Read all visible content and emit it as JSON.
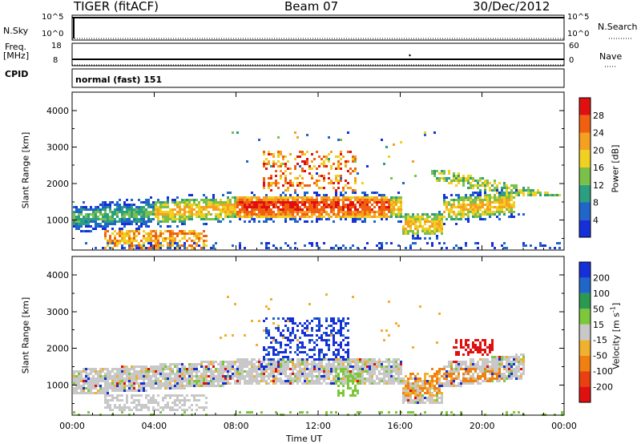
{
  "header": {
    "radar": "TIGER (fitACF)",
    "beam": "Beam 07",
    "date": "30/Dec/2012"
  },
  "panels": {
    "nsky": {
      "label": "N.Sky",
      "tick_top": "10^5",
      "tick_bottom": "10^0",
      "right_label": "N.Search",
      "right_tick_top": "10^5",
      "right_tick_bottom": "10^0"
    },
    "freq": {
      "label_line1": "Freq.",
      "label_line2": "[MHz]",
      "tick_top": "18",
      "tick_bottom": "8",
      "right_label": "Nave",
      "right_tick_top": "60",
      "right_tick_bottom": "0"
    },
    "cpid": {
      "label": "CPID",
      "value": "normal (fast) 151"
    }
  },
  "chart_data": [
    {
      "type": "heatmap",
      "name_key": "power",
      "ylabel": "Slant Range [km]",
      "xlabel": "",
      "ylim": [
        180,
        4500
      ],
      "yticks": [
        1000,
        2000,
        3000,
        4000
      ],
      "xticks": [
        "00:00",
        "04:00",
        "08:00",
        "12:00",
        "16:00",
        "20:00",
        "00:00"
      ],
      "xlim_hours": [
        0,
        24
      ],
      "colorbar": {
        "label": "Power [dB]",
        "ticks": [
          "4",
          "8",
          "12",
          "16",
          "20",
          "24",
          "28"
        ],
        "colors": [
          "#1530d8",
          "#1f66c8",
          "#2aa080",
          "#7cc04a",
          "#f0d020",
          "#f5a020",
          "#f06010",
          "#e01010"
        ]
      },
      "bands": [
        {
          "t": [
            0.0,
            8.5
          ],
          "r": [
            700,
            1600
          ],
          "level": "low-mid"
        },
        {
          "t": [
            8.5,
            16.0
          ],
          "r": [
            1000,
            1700
          ],
          "level": "high"
        },
        {
          "t": [
            9.5,
            13.5
          ],
          "r": [
            1800,
            2900
          ],
          "level": "mid-high"
        },
        {
          "t": [
            18.0,
            24.0
          ],
          "r": [
            1000,
            2300
          ],
          "level": "mid"
        },
        {
          "t": [
            2.0,
            6.0
          ],
          "r": [
            200,
            700
          ],
          "level": "high"
        }
      ]
    },
    {
      "type": "heatmap",
      "name_key": "velocity",
      "ylabel": "Slant Range [km]",
      "xlabel": "Time UT",
      "ylim": [
        180,
        4500
      ],
      "yticks": [
        1000,
        2000,
        3000,
        4000
      ],
      "xticks": [
        "00:00",
        "04:00",
        "08:00",
        "12:00",
        "16:00",
        "20:00",
        "00:00"
      ],
      "xlim_hours": [
        0,
        24
      ],
      "colorbar": {
        "label": "Velocity [m s",
        "label_sup": "-1",
        "label_end": "]",
        "ticks": [
          "200",
          "100",
          "50",
          "15",
          "-15",
          "-50",
          "-100",
          "-200"
        ],
        "colors": [
          "#1530d8",
          "#1f66c8",
          "#2a9a50",
          "#7cc83a",
          "#c8c8c8",
          "#f0b030",
          "#f08010",
          "#e84010",
          "#e01010"
        ]
      }
    }
  ]
}
